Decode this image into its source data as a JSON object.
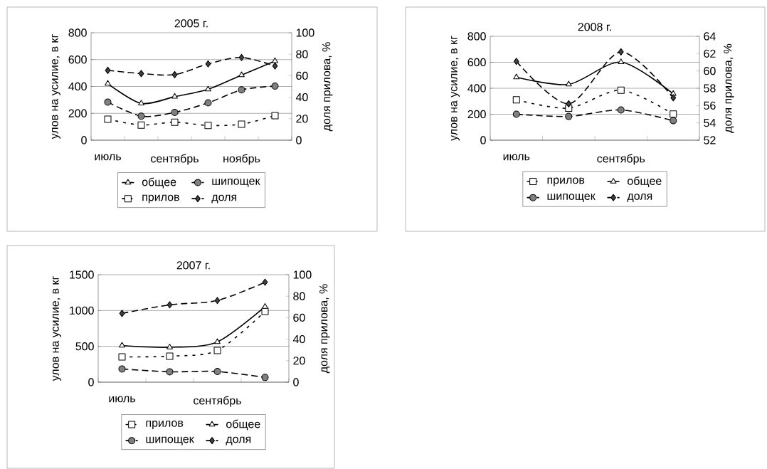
{
  "chart_data": [
    {
      "type": "line",
      "title": "2005 г.",
      "ylabel": "улов на усилие, в кг",
      "y2label": "доля прилова, %",
      "categories": [
        "июль",
        null,
        "сентябрь",
        null,
        "ноябрь",
        null
      ],
      "ylim": [
        0,
        800
      ],
      "yticks": [
        0,
        200,
        400,
        600,
        800
      ],
      "y2lim": [
        0,
        100
      ],
      "y2ticks": [
        0,
        20,
        40,
        60,
        80,
        100
      ],
      "grid": "y",
      "legend": "bottom",
      "series": [
        {
          "name": "общее",
          "color": "#000000",
          "marker": "triangle",
          "line_style": "solid",
          "values": [
            421,
            274,
            324,
            379,
            485,
            589
          ]
        },
        {
          "name": "шипощек",
          "color": "#000000",
          "marker": "circle",
          "line_style": "dashed",
          "values": [
            284,
            179,
            207,
            278,
            375,
            403
          ]
        },
        {
          "name": "прилов",
          "color": "#000000",
          "marker": "square",
          "line_style": "dotted",
          "values": [
            156,
            113,
            134,
            110,
            119,
            183
          ]
        },
        {
          "name": "доля",
          "color": "#000000",
          "marker": "diamond",
          "line_style": "dashed",
          "axis": "y2",
          "values": [
            65,
            62,
            61,
            71,
            77,
            69
          ]
        }
      ]
    },
    {
      "type": "line",
      "title": "2008 г.",
      "ylabel": "улов на усилие, в кг",
      "y2label": "доля прилова, %",
      "categories": [
        "июль",
        null,
        "сентябрь",
        null
      ],
      "ylim": [
        0,
        800
      ],
      "yticks": [
        0,
        200,
        400,
        600,
        800
      ],
      "y2lim": [
        52,
        64
      ],
      "y2ticks": [
        52,
        54,
        56,
        58,
        60,
        62,
        64
      ],
      "grid": "y",
      "legend": "bottom",
      "series": [
        {
          "name": "прилов",
          "color": "#000000",
          "marker": "square",
          "line_style": "dotted",
          "values": [
            311,
            247,
            385,
            201
          ]
        },
        {
          "name": "общее",
          "color": "#000000",
          "marker": "triangle",
          "line_style": "solid",
          "values": [
            485,
            430,
            601,
            357
          ]
        },
        {
          "name": "шипощек",
          "color": "#000000",
          "marker": "circle",
          "line_style": "dashed",
          "values": [
            200,
            183,
            233,
            150
          ]
        },
        {
          "name": "доля",
          "color": "#000000",
          "marker": "diamond",
          "line_style": "dashed",
          "axis": "y2",
          "values": [
            61.1,
            56.2,
            62.2,
            56.9
          ]
        }
      ]
    },
    {
      "type": "line",
      "title": "2007 г.",
      "ylabel": "улов на усилие, в кг",
      "y2label": "доля прилова, %",
      "categories": [
        "июль",
        null,
        "сентябрь",
        null
      ],
      "ylim": [
        0,
        1500
      ],
      "yticks": [
        0,
        500,
        1000,
        1500
      ],
      "y2lim": [
        0,
        100
      ],
      "y2ticks": [
        0,
        20,
        40,
        60,
        80,
        100
      ],
      "grid": "y",
      "legend": "bottom",
      "series": [
        {
          "name": "прилов",
          "color": "#000000",
          "marker": "square",
          "line_style": "dotted",
          "values": [
            353,
            363,
            443,
            988
          ]
        },
        {
          "name": "общее",
          "color": "#000000",
          "marker": "triangle",
          "line_style": "solid",
          "values": [
            512,
            486,
            562,
            1054
          ]
        },
        {
          "name": "шипощек",
          "color": "#000000",
          "marker": "circle",
          "line_style": "dashed",
          "values": [
            185,
            145,
            149,
            66
          ]
        },
        {
          "name": "доля",
          "color": "#000000",
          "marker": "diamond",
          "line_style": "dashed",
          "axis": "y2",
          "values": [
            64,
            72,
            76,
            93
          ]
        }
      ]
    }
  ]
}
